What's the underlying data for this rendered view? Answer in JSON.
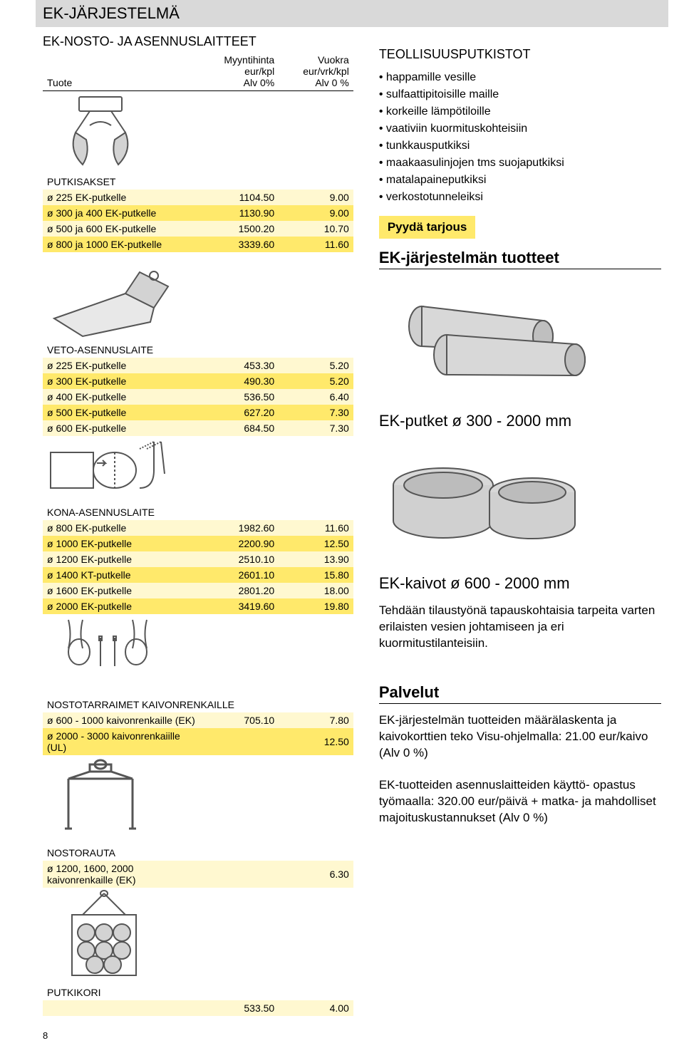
{
  "header": "EK-JÄRJESTELMÄ",
  "left_block_title": "EK-NOSTO- JA ASENNUSLAITTEET",
  "columns": {
    "c1": "Tuote",
    "c2_a": "Myyntihinta",
    "c2_b": "eur/kpl",
    "c2_c": "Alv 0%",
    "c3_a": "Vuokra",
    "c3_b": "eur/vrk/kpl",
    "c3_c": "Alv 0 %"
  },
  "colors": {
    "row_light": "#fff8d0",
    "row_dark": "#ffe96b",
    "gray_bar": "#d9d9d9",
    "illus_fill": "#d3d3d3",
    "illus_stroke": "#555555"
  },
  "putkisakset": {
    "title": "PUTKISAKSET",
    "rows": [
      {
        "label": "ø 225 EK-putkelle",
        "myy": "1104.50",
        "vuo": "9.00"
      },
      {
        "label": "ø 300 ja  400 EK-putkelle",
        "myy": "1130.90",
        "vuo": "9.00"
      },
      {
        "label": "ø 500 ja  600 EK-putkelle",
        "myy": "1500.20",
        "vuo": "10.70"
      },
      {
        "label": "ø 800 ja 1000 EK-putkelle",
        "myy": "3339.60",
        "vuo": "11.60"
      }
    ]
  },
  "veto": {
    "title": "VETO-ASENNUSLAITE",
    "rows": [
      {
        "label": "ø 225 EK-putkelle",
        "myy": "453.30",
        "vuo": "5.20"
      },
      {
        "label": "ø 300 EK-putkelle",
        "myy": "490.30",
        "vuo": "5.20"
      },
      {
        "label": "ø 400 EK-putkelle",
        "myy": "536.50",
        "vuo": "6.40"
      },
      {
        "label": "ø 500 EK-putkelle",
        "myy": "627.20",
        "vuo": "7.30"
      },
      {
        "label": "ø 600 EK-putkelle",
        "myy": "684.50",
        "vuo": "7.30"
      }
    ]
  },
  "kona": {
    "title": "KONA-ASENNUSLAITE",
    "rows": [
      {
        "label": "ø  800 EK-putkelle",
        "myy": "1982.60",
        "vuo": "11.60"
      },
      {
        "label": "ø 1000 EK-putkelle",
        "myy": "2200.90",
        "vuo": "12.50"
      },
      {
        "label": "ø 1200 EK-putkelle",
        "myy": "2510.10",
        "vuo": "13.90"
      },
      {
        "label": "ø 1400 KT-putkelle",
        "myy": "2601.10",
        "vuo": "15.80"
      },
      {
        "label": "ø 1600 EK-putkelle",
        "myy": "2801.20",
        "vuo": "18.00"
      },
      {
        "label": "ø 2000 EK-putkelle",
        "myy": "3419.60",
        "vuo": "19.80"
      }
    ]
  },
  "nostotarraimet": {
    "title": "NOSTOTARRAIMET KAIVONRENKAILLE",
    "rows": [
      {
        "label": "ø  600 - 1000 kaivonrenkaille (EK)",
        "myy": "705.10",
        "vuo": "7.80"
      },
      {
        "label": "ø 2000 - 3000 kaivonrenkaiille (UL)",
        "myy": "",
        "vuo": "12.50"
      }
    ]
  },
  "nostorauta": {
    "title": "NOSTORAUTA",
    "rows": [
      {
        "label": "ø 1200, 1600, 2000 kaivonrenkaille (EK)",
        "myy": "",
        "vuo": "6.30"
      }
    ]
  },
  "putkikori": {
    "title": "PUTKIKORI",
    "rows": [
      {
        "label": "",
        "myy": "533.50",
        "vuo": "4.00"
      }
    ]
  },
  "right": {
    "title": "TEOLLISUUSPUTKISTOT",
    "bullets": [
      "happamille vesille",
      "sulfaattipitoisille maille",
      "korkeille lämpötiloille",
      "vaativiin kuormituskohteisiin",
      "tunkkausputkiksi",
      "maakaasulinjojen tms suojaputkiksi",
      "matalapaineputkiksi",
      "verkostotunneleiksi"
    ],
    "pyyda": "Pyydä tarjous",
    "sec1": "EK-järjestelmän tuotteet",
    "sub1": "EK-putket ø 300 - 2000 mm",
    "sub2": "EK-kaivot ø 600 - 2000 mm",
    "kaivot_text": "Tehdään tilaustyönä tapauskohtaisia tarpeita varten erilaisten vesien johtamiseen ja eri kuormitustilanteisiin.",
    "palvelut": "Palvelut",
    "p1": "EK-järjestelmän tuotteiden määrälaskenta ja kaivokorttien teko Visu-ohjelmalla: 21.00 eur/kaivo (Alv 0 %)",
    "p2": "EK-tuotteiden asennuslaitteiden käyttö- opastus työmaalla: 320.00 eur/päivä + matka- ja mahdolliset majoituskustannukset (Alv 0 %)"
  },
  "page_number": "8"
}
